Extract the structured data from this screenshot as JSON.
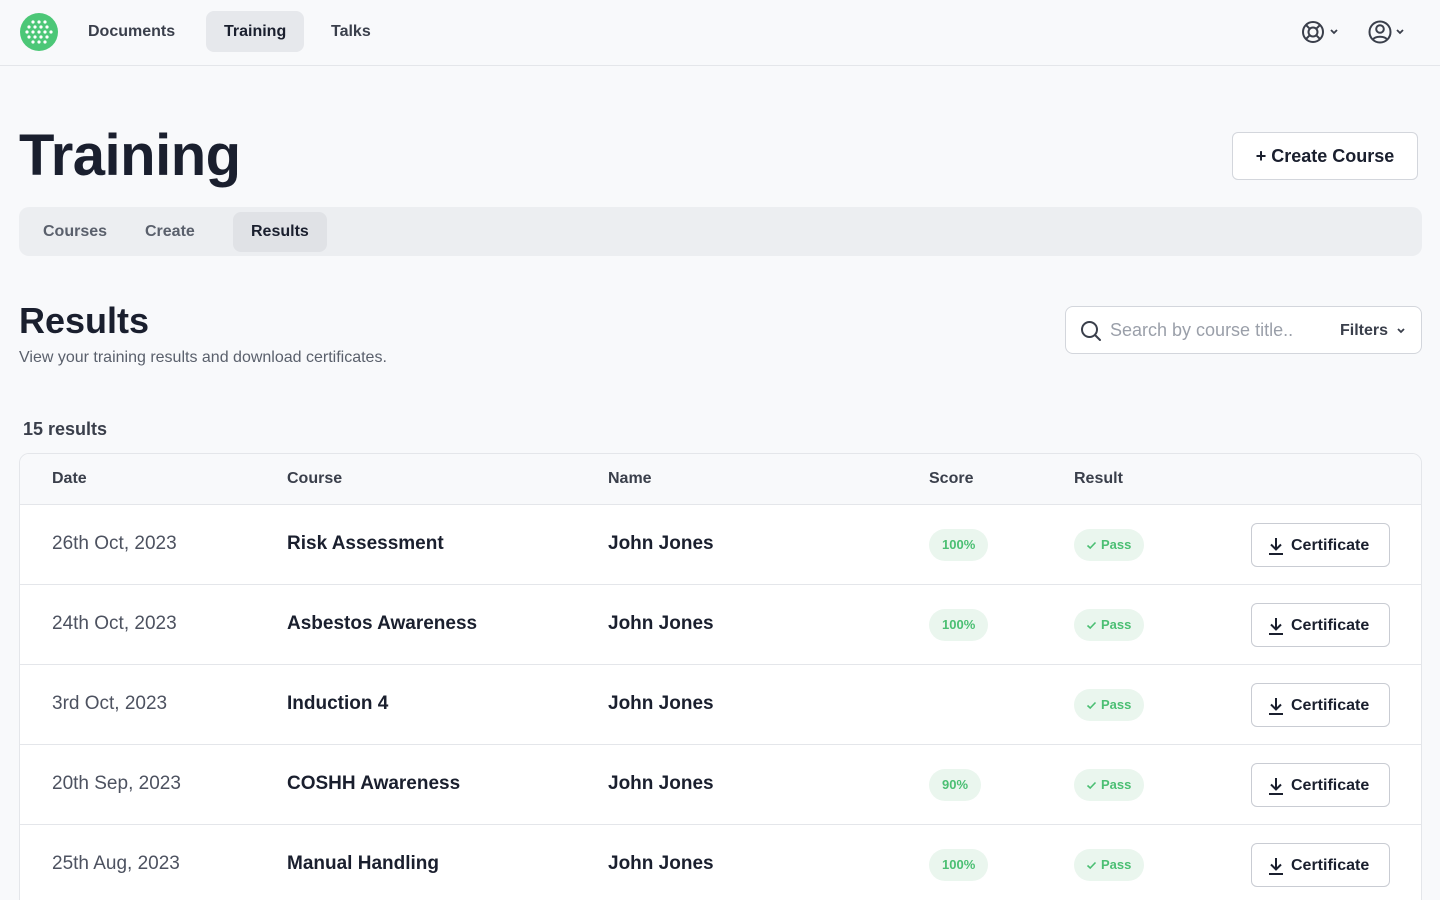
{
  "nav": {
    "items": [
      {
        "label": "Documents",
        "active": false
      },
      {
        "label": "Training",
        "active": true
      },
      {
        "label": "Talks",
        "active": false
      }
    ],
    "help_icon": "lifebuoy-icon",
    "account_icon": "user-circle-icon"
  },
  "header": {
    "title": "Training",
    "create_label": "+ Create Course"
  },
  "subtabs": [
    {
      "label": "Courses",
      "active": false
    },
    {
      "label": "Create",
      "active": false
    },
    {
      "label": "Results",
      "active": true
    }
  ],
  "section": {
    "title": "Results",
    "subtitle": "View your training results and download certificates."
  },
  "search": {
    "placeholder": "Search by course title..",
    "value": "",
    "filters_label": "Filters"
  },
  "results_count": "15 results",
  "table": {
    "headers": [
      "Date",
      "Course",
      "Name",
      "Score",
      "Result"
    ],
    "rows": [
      {
        "date": "26th Oct, 2023",
        "course": "Risk Assessment",
        "name": "John Jones",
        "score": "100%",
        "result": "Pass",
        "action": "Certificate"
      },
      {
        "date": "24th Oct, 2023",
        "course": "Asbestos Awareness",
        "name": "John Jones",
        "score": "100%",
        "result": "Pass",
        "action": "Certificate"
      },
      {
        "date": "3rd Oct, 2023",
        "course": "Induction 4",
        "name": "John Jones",
        "score": "",
        "result": "Pass",
        "action": "Certificate"
      },
      {
        "date": "20th Sep, 2023",
        "course": "COSHH Awareness",
        "name": "John Jones",
        "score": "90%",
        "result": "Pass",
        "action": "Certificate"
      },
      {
        "date": "25th Aug, 2023",
        "course": "Manual Handling",
        "name": "John Jones",
        "score": "100%",
        "result": "Pass",
        "action": "Certificate"
      }
    ]
  },
  "colors": {
    "brand": "#4cc777",
    "pass_bg": "#eaf6ee",
    "pass_text": "#4bbf73"
  }
}
